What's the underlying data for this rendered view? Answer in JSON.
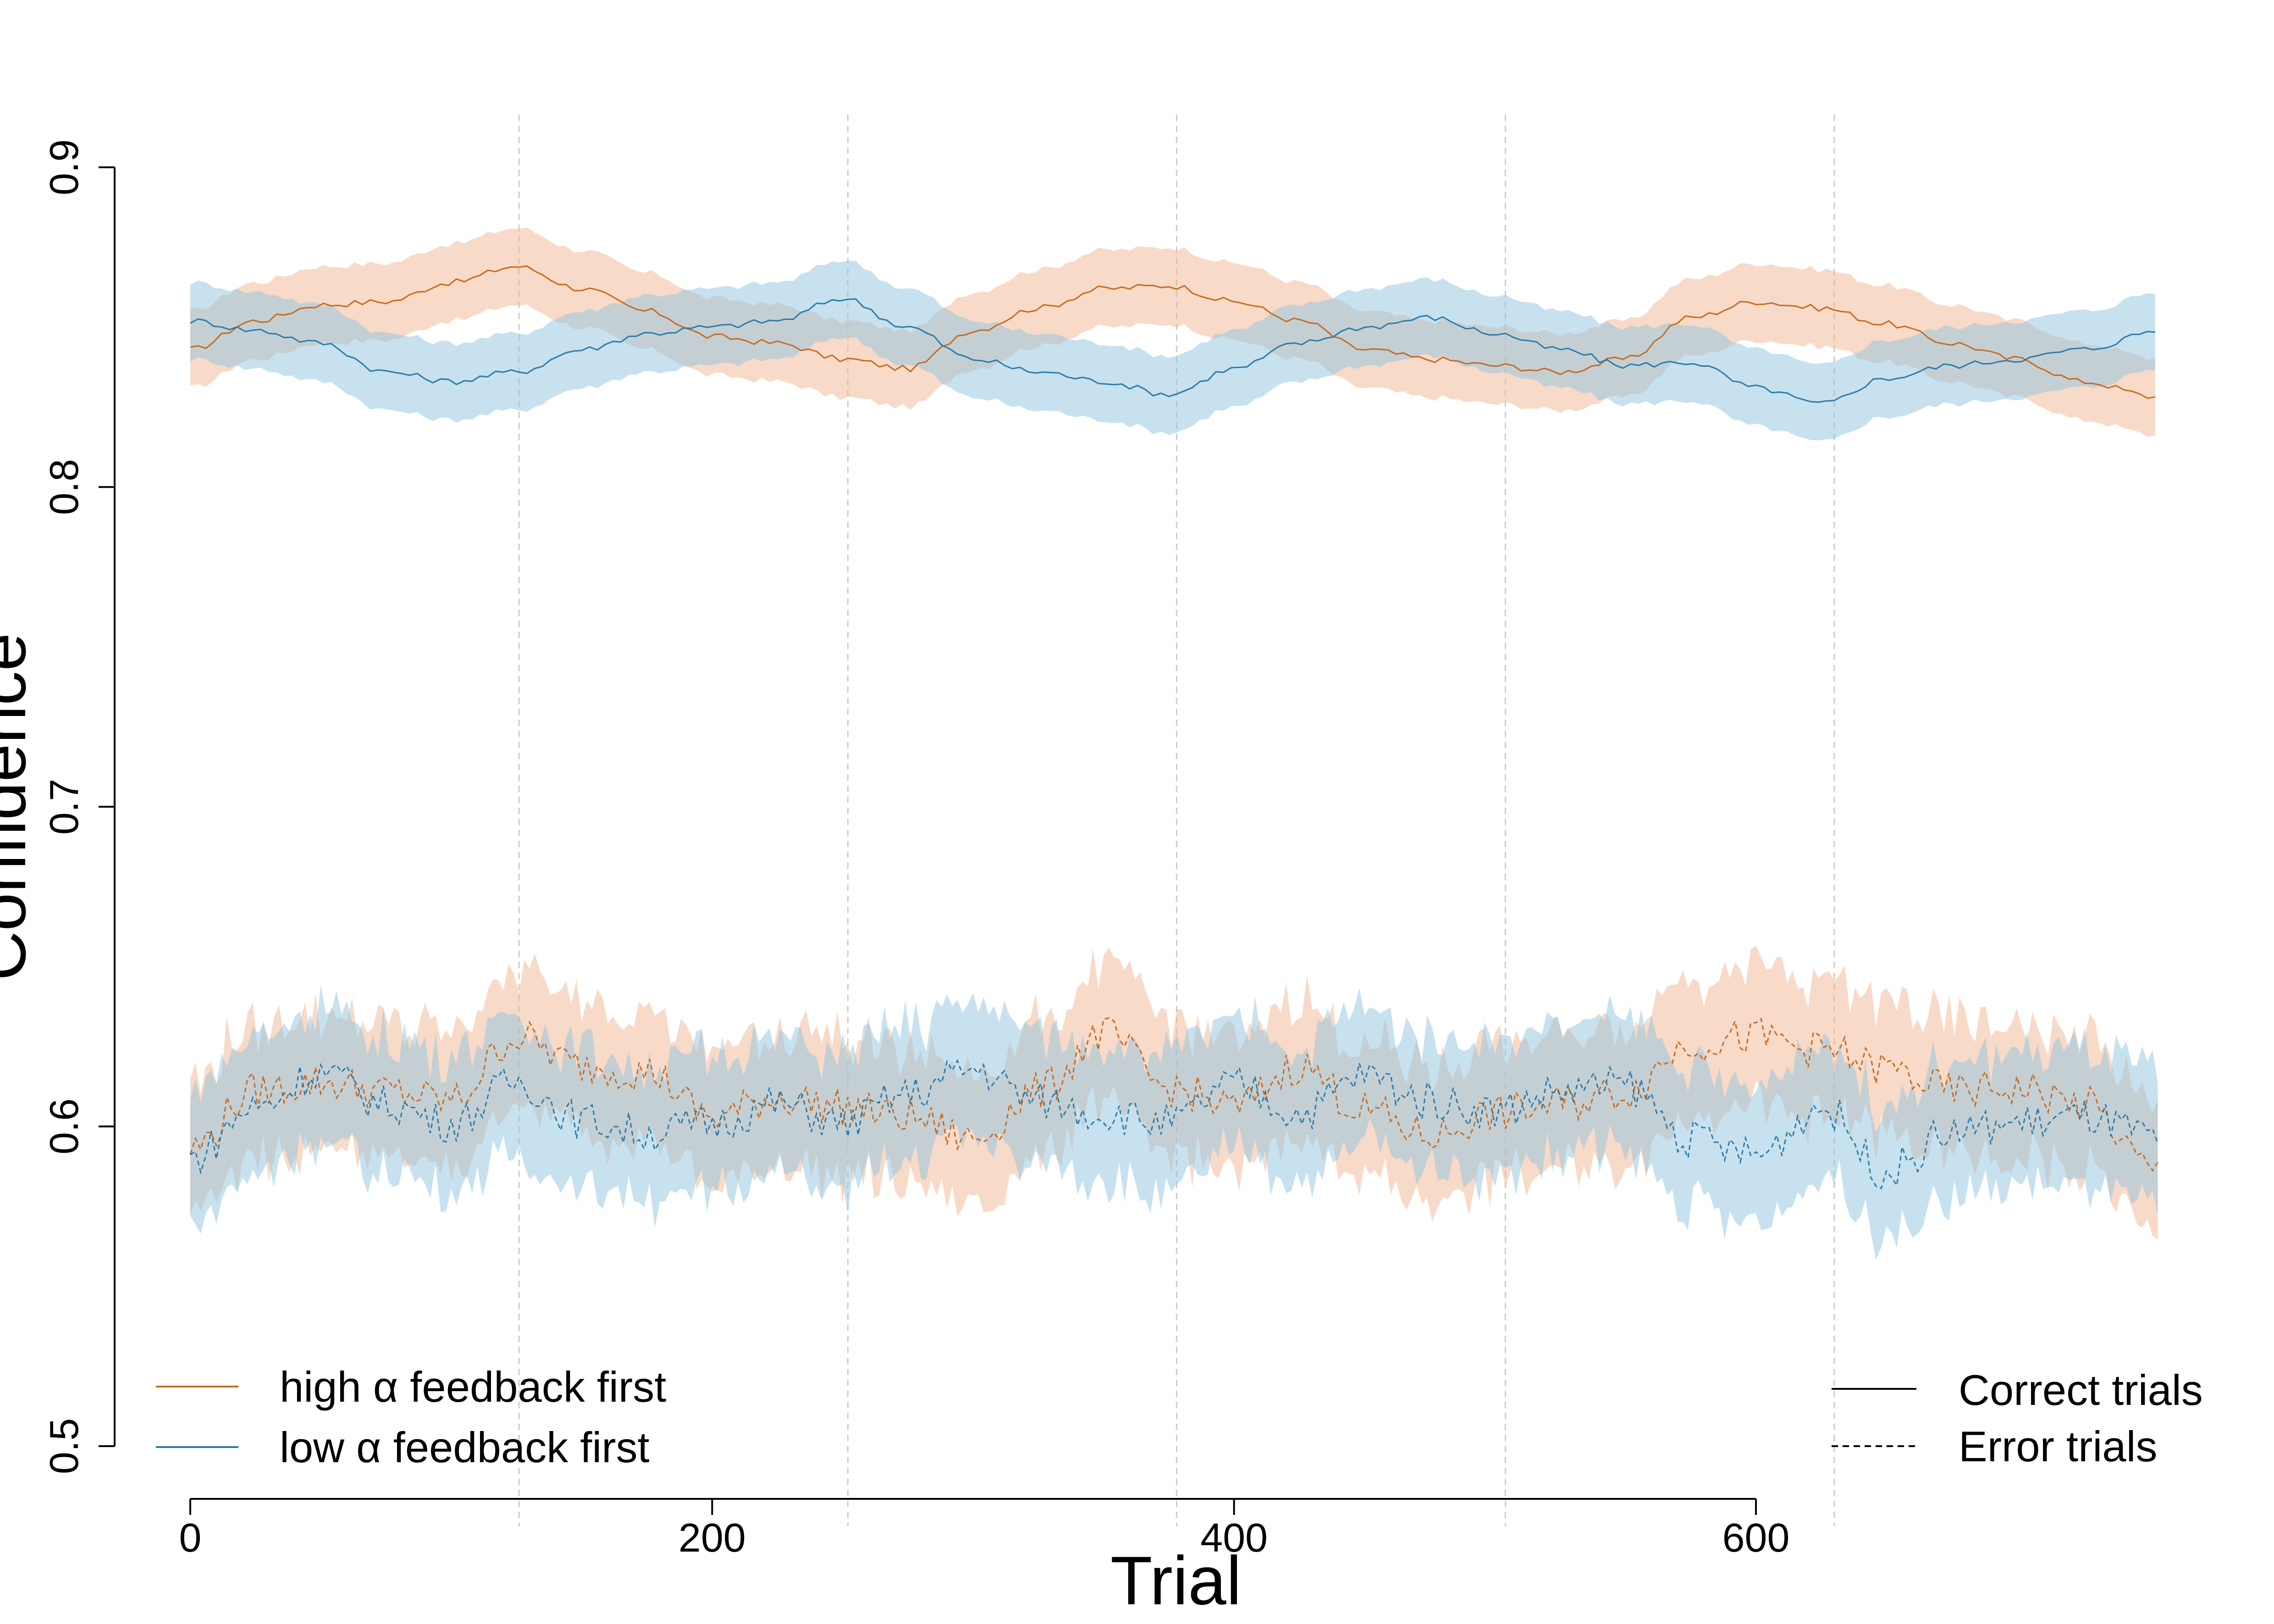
{
  "colors": {
    "high": "#c8691c",
    "low": "#2a7aa8",
    "high_band": "#f2b592",
    "low_band": "#8fc4e0",
    "axis": "#000000",
    "block_divider": "#cccccc"
  },
  "chart_data": {
    "type": "line",
    "xlabel": "Trial",
    "ylabel": "Confidence",
    "xlim": [
      0,
      750
    ],
    "ylim": [
      0.5,
      0.9
    ],
    "x_ticks": [
      0,
      200,
      400,
      600
    ],
    "x_tick_labels": [
      "0",
      "200",
      "400",
      "600"
    ],
    "y_ticks": [
      0.5,
      0.6,
      0.7,
      0.8,
      0.9
    ],
    "y_tick_labels": [
      "0.5",
      "0.6",
      "0.7",
      "0.8",
      "0.9"
    ],
    "block_dividers_x": [
      126,
      252,
      378,
      504,
      630
    ],
    "grid": false,
    "series_x": [
      0,
      25,
      50,
      75,
      100,
      125,
      150,
      175,
      200,
      225,
      250,
      275,
      300,
      325,
      350,
      375,
      400,
      425,
      450,
      475,
      500,
      525,
      550,
      575,
      600,
      625,
      650,
      675,
      700,
      725,
      755
    ],
    "series": [
      {
        "name": "high α feedback first",
        "group": "high",
        "trials": "Correct trials",
        "values": [
          0.843,
          0.852,
          0.857,
          0.858,
          0.864,
          0.869,
          0.862,
          0.855,
          0.847,
          0.845,
          0.84,
          0.837,
          0.849,
          0.856,
          0.862,
          0.863,
          0.858,
          0.852,
          0.843,
          0.84,
          0.838,
          0.836,
          0.84,
          0.853,
          0.858,
          0.856,
          0.851,
          0.845,
          0.84,
          0.833,
          0.828
        ],
        "band": 0.012
      },
      {
        "name": "low α feedback first",
        "group": "low",
        "trials": "Correct trials",
        "values": [
          0.852,
          0.849,
          0.845,
          0.836,
          0.833,
          0.836,
          0.843,
          0.848,
          0.85,
          0.852,
          0.859,
          0.85,
          0.84,
          0.836,
          0.833,
          0.829,
          0.837,
          0.845,
          0.85,
          0.853,
          0.848,
          0.843,
          0.838,
          0.839,
          0.831,
          0.826,
          0.834,
          0.838,
          0.84,
          0.843,
          0.849
        ],
        "band": 0.012
      },
      {
        "name": "high α feedback first",
        "group": "high",
        "trials": "Error trials",
        "values": [
          0.593,
          0.611,
          0.614,
          0.611,
          0.608,
          0.628,
          0.619,
          0.617,
          0.603,
          0.609,
          0.606,
          0.603,
          0.596,
          0.611,
          0.629,
          0.612,
          0.606,
          0.619,
          0.605,
          0.597,
          0.604,
          0.607,
          0.611,
          0.626,
          0.628,
          0.624,
          0.618,
          0.611,
          0.612,
          0.607,
          0.585
        ],
        "band": 0.021
      },
      {
        "name": "low α feedback first",
        "group": "low",
        "trials": "Error trials",
        "values": [
          0.59,
          0.606,
          0.617,
          0.607,
          0.601,
          0.614,
          0.602,
          0.598,
          0.601,
          0.607,
          0.601,
          0.61,
          0.618,
          0.608,
          0.604,
          0.601,
          0.613,
          0.604,
          0.616,
          0.608,
          0.605,
          0.611,
          0.613,
          0.596,
          0.591,
          0.606,
          0.586,
          0.598,
          0.601,
          0.603,
          0.596
        ],
        "band": 0.021
      }
    ],
    "legend_groups": [
      {
        "label": "high α feedback first",
        "key": "high"
      },
      {
        "label": "low α feedback first",
        "key": "low"
      }
    ],
    "legend_trials": [
      {
        "label": "Correct trials",
        "dash": "solid"
      },
      {
        "label": "Error trials",
        "dash": "dashed"
      }
    ],
    "legend_placement": [
      "bottom-left",
      "bottom-right"
    ]
  }
}
